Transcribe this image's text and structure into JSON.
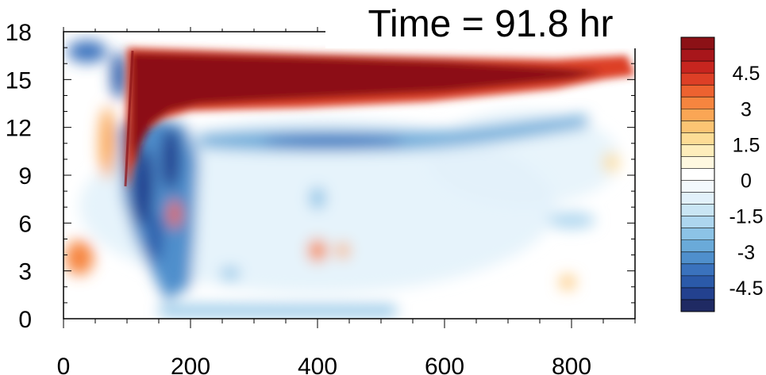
{
  "chart_data": {
    "type": "heatmap",
    "title": "Time = 91.8 hr",
    "xlabel": "",
    "ylabel": "",
    "xlim": [
      0,
      900
    ],
    "ylim": [
      0,
      18
    ],
    "x_ticks": [
      "0",
      "200",
      "400",
      "600",
      "800"
    ],
    "y_ticks": [
      "0",
      "3",
      "6",
      "9",
      "12",
      "15",
      "18"
    ],
    "colorbar": {
      "labels": [
        "4.5",
        "3",
        "1.5",
        "0",
        "-1.5",
        "-3",
        "-4.5"
      ],
      "levels": [
        -5.5,
        -5,
        -4.5,
        -4,
        -3.5,
        -3,
        -2.5,
        -2,
        -1.5,
        -1,
        -0.5,
        0,
        0.5,
        1,
        1.5,
        2,
        2.5,
        3,
        3.5,
        4,
        4.5,
        5,
        5.5
      ],
      "colors": [
        "#1f2a63",
        "#23418f",
        "#2b5aa9",
        "#3a72bd",
        "#4f8fcc",
        "#6aaad9",
        "#8cc3e6",
        "#add6ef",
        "#c9e5f4",
        "#e2f1fa",
        "#f3f9fd",
        "#ffffff",
        "#fff8e0",
        "#feedbb",
        "#fddc95",
        "#fcc473",
        "#faa655",
        "#f6853f",
        "#ed6230",
        "#dd3f26",
        "#c7251f",
        "#a8161b",
        "#8c1116"
      ]
    },
    "features": [
      {
        "name": "upper red band",
        "value": 6,
        "x_range": [
          105,
          900
        ],
        "y_range": [
          13.5,
          16.8
        ]
      },
      {
        "name": "blue band below",
        "value": -3,
        "x_range": [
          200,
          720
        ],
        "y_range": [
          11,
          12.6
        ]
      },
      {
        "name": "left blue columns",
        "value": -5,
        "x_range": [
          100,
          250
        ],
        "y_range": [
          1,
          12
        ]
      },
      {
        "name": "near-surface blue",
        "value": -2,
        "x_range": [
          200,
          500
        ],
        "y_range": [
          0,
          1
        ]
      },
      {
        "name": "warm spot",
        "value": 3.5,
        "x": 400,
        "y": 4.2
      }
    ]
  }
}
